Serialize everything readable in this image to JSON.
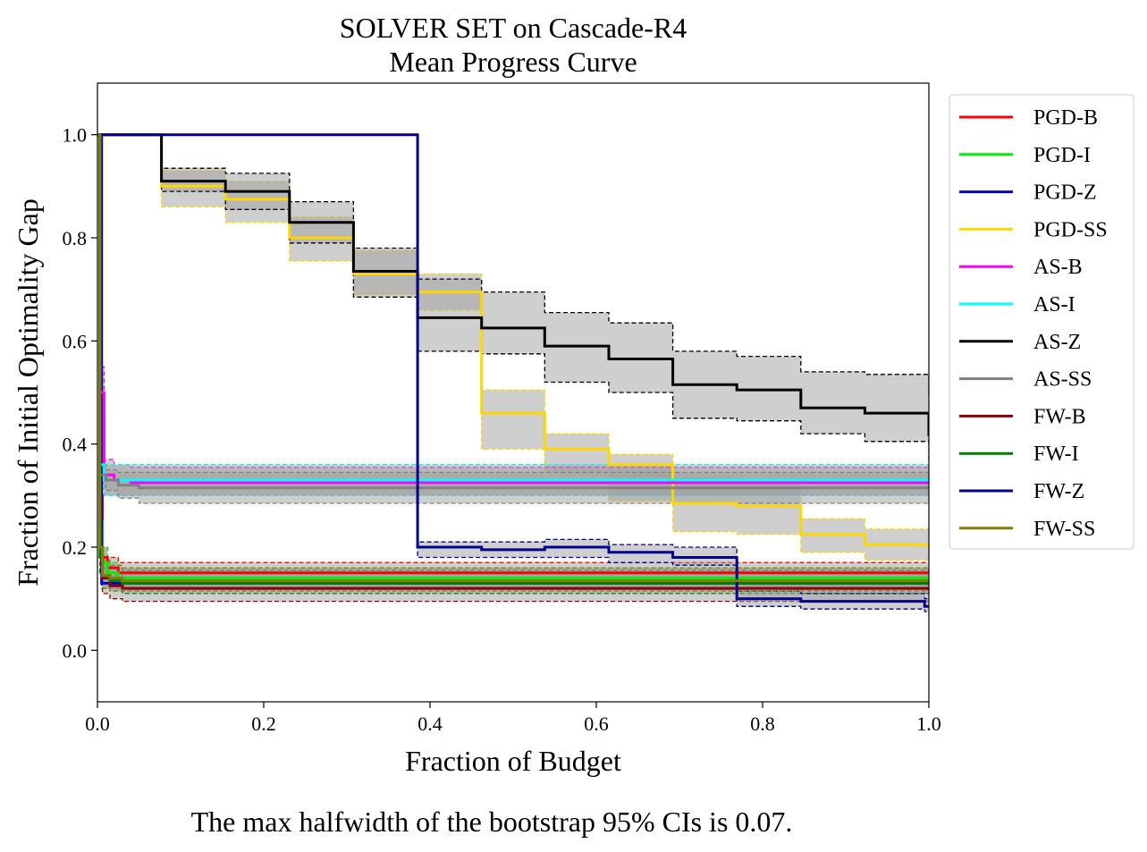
{
  "chart_data": {
    "type": "line",
    "title": "SOLVER SET on Cascade-R4",
    "subtitle": "Mean Progress Curve",
    "xlabel": "Fraction of Budget",
    "ylabel": "Fraction of Initial Optimality Gap",
    "xlim": [
      0,
      1
    ],
    "ylim": [
      -0.1,
      1.1
    ],
    "xticks": [
      "0.0",
      "0.2",
      "0.4",
      "0.6",
      "0.8",
      "1.0"
    ],
    "yticks": [
      "0.0",
      "0.2",
      "0.4",
      "0.6",
      "0.8",
      "1.0"
    ],
    "grid": false,
    "legend_position": "outside-right",
    "note": "The max halfwidth of the bootstrap 95% CIs is 0.07.",
    "series": [
      {
        "name": "PGD-B",
        "color": "#ff0000",
        "x": [
          0,
          0.003,
          0.006,
          0.012,
          0.025,
          1.0
        ],
        "y": [
          1.0,
          0.3,
          0.18,
          0.16,
          0.15,
          0.15
        ],
        "ci_low": [
          1.0,
          0.26,
          0.15,
          0.14,
          0.13,
          0.13
        ],
        "ci_high": [
          1.0,
          0.34,
          0.2,
          0.18,
          0.17,
          0.17
        ]
      },
      {
        "name": "PGD-I",
        "color": "#00ee00",
        "x": [
          0,
          0.003,
          0.006,
          0.012,
          0.025,
          1.0
        ],
        "y": [
          1.0,
          0.25,
          0.17,
          0.15,
          0.14,
          0.14
        ],
        "ci_low": [
          1.0,
          0.21,
          0.14,
          0.13,
          0.12,
          0.12
        ],
        "ci_high": [
          1.0,
          0.29,
          0.2,
          0.17,
          0.16,
          0.16
        ]
      },
      {
        "name": "PGD-Z",
        "color": "#0000cc",
        "x": [
          0,
          0.005,
          1.0
        ],
        "y": [
          1.0,
          0.13,
          0.13
        ],
        "ci_low": [
          1.0,
          0.12,
          0.12
        ],
        "ci_high": [
          1.0,
          0.14,
          0.14
        ]
      },
      {
        "name": "PGD-SS",
        "color": "#ffd700",
        "x": [
          0,
          0.077,
          0.154,
          0.231,
          0.308,
          0.385,
          0.462,
          0.538,
          0.615,
          0.692,
          0.769,
          0.846,
          0.923,
          1.0
        ],
        "y": [
          1.0,
          0.9,
          0.875,
          0.8,
          0.73,
          0.695,
          0.46,
          0.39,
          0.36,
          0.285,
          0.28,
          0.225,
          0.205,
          0.195
        ],
        "ci_low": [
          1.0,
          0.86,
          0.83,
          0.755,
          0.69,
          0.66,
          0.39,
          0.345,
          0.29,
          0.23,
          0.225,
          0.19,
          0.175,
          0.17
        ],
        "ci_high": [
          1.0,
          0.93,
          0.91,
          0.84,
          0.775,
          0.73,
          0.505,
          0.42,
          0.38,
          0.335,
          0.325,
          0.255,
          0.235,
          0.23
        ]
      },
      {
        "name": "AS-B",
        "color": "#ff00ff",
        "x": [
          0,
          0.003,
          0.008,
          0.02,
          0.04,
          1.0
        ],
        "y": [
          1.0,
          0.5,
          0.34,
          0.33,
          0.325,
          0.325
        ],
        "ci_low": [
          1.0,
          0.45,
          0.3,
          0.3,
          0.3,
          0.3
        ],
        "ci_high": [
          1.0,
          0.55,
          0.37,
          0.36,
          0.355,
          0.355
        ]
      },
      {
        "name": "AS-I",
        "color": "#00ffff",
        "x": [
          0,
          0.003,
          0.008,
          1.0
        ],
        "y": [
          1.0,
          0.36,
          0.33,
          0.33
        ],
        "ci_low": [
          1.0,
          0.32,
          0.3,
          0.3
        ],
        "ci_high": [
          1.0,
          0.4,
          0.36,
          0.36
        ]
      },
      {
        "name": "AS-Z",
        "color": "#000000",
        "x": [
          0,
          0.077,
          0.154,
          0.231,
          0.308,
          0.385,
          0.462,
          0.538,
          0.615,
          0.692,
          0.769,
          0.846,
          0.923,
          1.0
        ],
        "y": [
          1.0,
          0.91,
          0.89,
          0.83,
          0.735,
          0.645,
          0.625,
          0.59,
          0.565,
          0.515,
          0.505,
          0.47,
          0.46,
          0.415
        ],
        "ci_low": [
          1.0,
          0.89,
          0.855,
          0.79,
          0.685,
          0.58,
          0.575,
          0.52,
          0.5,
          0.45,
          0.445,
          0.42,
          0.405,
          0.365
        ],
        "ci_high": [
          1.0,
          0.935,
          0.925,
          0.87,
          0.78,
          0.72,
          0.695,
          0.655,
          0.635,
          0.58,
          0.57,
          0.54,
          0.535,
          0.49
        ]
      },
      {
        "name": "AS-SS",
        "color": "#808080",
        "x": [
          0,
          0.003,
          0.01,
          0.025,
          0.05,
          1.0
        ],
        "y": [
          1.0,
          0.34,
          0.33,
          0.32,
          0.315,
          0.315
        ],
        "ci_low": [
          1.0,
          0.32,
          0.31,
          0.295,
          0.285,
          0.285
        ],
        "ci_high": [
          1.0,
          0.36,
          0.35,
          0.345,
          0.345,
          0.345
        ]
      },
      {
        "name": "FW-B",
        "color": "#8b0000",
        "x": [
          0,
          0.003,
          0.006,
          0.015,
          0.03,
          1.0
        ],
        "y": [
          1.0,
          0.2,
          0.14,
          0.125,
          0.12,
          0.115
        ],
        "ci_low": [
          1.0,
          0.15,
          0.11,
          0.1,
          0.095,
          0.095
        ],
        "ci_high": [
          1.0,
          0.24,
          0.16,
          0.145,
          0.14,
          0.14
        ]
      },
      {
        "name": "FW-I",
        "color": "#008000",
        "x": [
          0,
          0.003,
          0.006,
          0.015,
          0.03,
          1.0
        ],
        "y": [
          1.0,
          0.18,
          0.145,
          0.135,
          0.13,
          0.13
        ],
        "ci_low": [
          1.0,
          0.15,
          0.12,
          0.115,
          0.11,
          0.11
        ],
        "ci_high": [
          1.0,
          0.21,
          0.17,
          0.16,
          0.155,
          0.155
        ]
      },
      {
        "name": "FW-Z",
        "color": "#00008b",
        "x": [
          0,
          0.385,
          0.462,
          0.538,
          0.615,
          0.692,
          0.769,
          0.846,
          0.923,
          0.995,
          1.0
        ],
        "y": [
          1.0,
          0.2,
          0.195,
          0.2,
          0.19,
          0.18,
          0.1,
          0.095,
          0.095,
          0.085,
          0.085
        ],
        "ci_low": [
          1.0,
          0.18,
          0.18,
          0.18,
          0.17,
          0.165,
          0.085,
          0.08,
          0.08,
          0.075,
          0.075
        ],
        "ci_high": [
          1.0,
          0.21,
          0.21,
          0.215,
          0.205,
          0.2,
          0.115,
          0.11,
          0.11,
          0.1,
          0.1
        ]
      },
      {
        "name": "FW-SS",
        "color": "#808000",
        "x": [
          0,
          0.003,
          0.006,
          0.015,
          0.03,
          1.0
        ],
        "y": [
          1.0,
          0.2,
          0.145,
          0.14,
          0.135,
          0.135
        ],
        "ci_low": [
          1.0,
          0.16,
          0.12,
          0.115,
          0.115,
          0.115
        ],
        "ci_high": [
          1.0,
          0.24,
          0.175,
          0.165,
          0.16,
          0.16
        ]
      }
    ]
  }
}
